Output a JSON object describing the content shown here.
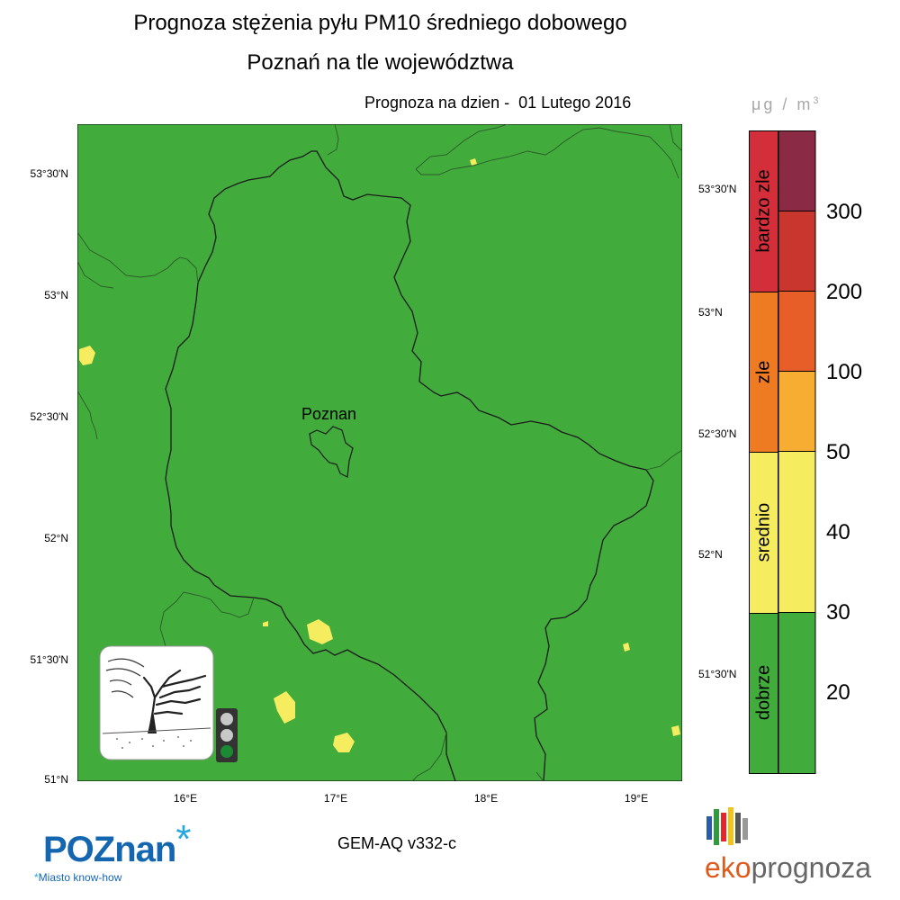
{
  "title_line1": "Prognoza stężenia pyłu PM10 średniego dobowego",
  "title_line2": "Poznań na tle województwa",
  "forecast_date": "Prognoza na dzien -  01 Lutego 2016",
  "city_label": "Poznan",
  "lat_labels_left": [
    "53°30'N",
    "53°N",
    "52°30'N",
    "52°N",
    "51°30'N",
    "51°N"
  ],
  "lat_labels_right": [
    "53°30'N",
    "53°N",
    "52°30'N",
    "52°N",
    "51°30'N"
  ],
  "lon_labels": [
    "16°E",
    "17°E",
    "18°E",
    "19°E"
  ],
  "legend": {
    "unit_text": "μg / m",
    "unit_sup": "3",
    "bands": [
      {
        "label": "bardzo zle",
        "color": "#d42e3a"
      },
      {
        "label": "zle",
        "color": "#ee7a22"
      },
      {
        "label": "srednio",
        "color": "#f6ec60"
      },
      {
        "label": "dobrze",
        "color": "#41ab3c"
      }
    ],
    "scale_colors": [
      "#8b2a45",
      "#c8362e",
      "#e85e28",
      "#f7ad31",
      "#f6ec60",
      "#f6ec60",
      "#41ab3c"
    ],
    "scale_values": [
      "300",
      "200",
      "100",
      "50",
      "40",
      "30",
      "20"
    ]
  },
  "traffic_light": {
    "active": "green"
  },
  "model": "GEM-AQ v332-c",
  "logo_poznan": {
    "text": "POZnan",
    "tagline": "Miasto know-how"
  },
  "logo_eko": {
    "prefix": "eko",
    "suffix": "prognoza"
  },
  "colors": {
    "map_green": "#41ab3c",
    "map_yellow": "#f6ec60",
    "border": "#222222"
  }
}
